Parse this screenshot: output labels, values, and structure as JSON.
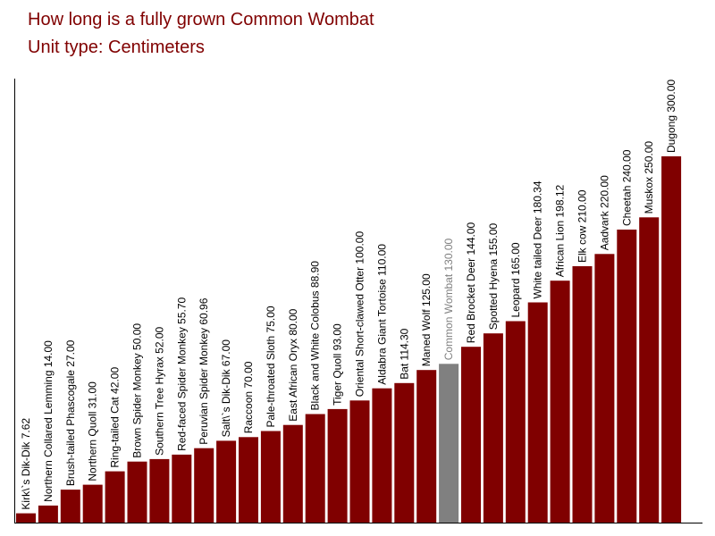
{
  "chart_data": {
    "type": "bar",
    "title": "How long is a fully grown Common Wombat",
    "subtitle": "Unit type: Centimeters",
    "xlabel": "",
    "ylabel": "",
    "ylim": [
      0,
      400
    ],
    "grid": false,
    "legend": "none",
    "colors": {
      "bar": "#800000",
      "highlight": "#808080",
      "axis": "#000000",
      "title": "#800000"
    },
    "highlight_index": 19,
    "categories": [
      "Kirk\\`s Dik-Dik",
      "Northern Collared Lemming",
      "Brush-tailed Phascogale",
      "Northern Quoll",
      "Ring-tailed Cat",
      "Brown Spider Monkey",
      "Southern Tree Hyrax",
      "Red-faced Spider Monkey",
      "Peruvian Spider Monkey",
      "Salt\\`s Dik-Dik",
      "Raccoon",
      "Pale-throated Sloth",
      "East African Oryx",
      "Black and White Colobus",
      "Tiger Quoll",
      "Oriental Short-clawed Otter",
      "Aldabra Giant Tortoise",
      "Bat",
      "Maned Wolf",
      "Common Wombat",
      "Red Brocket Deer",
      "Spotted Hyena",
      "Leopard ",
      "White tailed Deer",
      "African Lion",
      "Elk cow",
      "Aadvark",
      "Cheetah",
      "Muskox",
      "Dugong"
    ],
    "values": [
      7.62,
      14.0,
      27.0,
      31.0,
      42.0,
      50.0,
      52.0,
      55.7,
      60.96,
      67.0,
      70.0,
      75.0,
      80.0,
      88.9,
      93.0,
      100.0,
      110.0,
      114.3,
      125.0,
      130.0,
      144.0,
      155.0,
      165.0,
      180.34,
      198.12,
      210.0,
      220.0,
      240.0,
      250.0,
      300.0
    ],
    "value_labels": [
      "7.62",
      "14.00",
      "27.00",
      "31.00",
      "42.00",
      "50.00",
      "52.00",
      "55.70",
      "60.96",
      "67.00",
      "70.00",
      "75.00",
      "80.00",
      "88.90",
      "93.00",
      "100.00",
      "110.00",
      "114.30",
      "125.00",
      "130.00",
      "144.00",
      "155.00",
      "165.00",
      "180.34",
      "198.12",
      "210.00",
      "220.00",
      "240.00",
      "250.00",
      "300.00"
    ]
  }
}
